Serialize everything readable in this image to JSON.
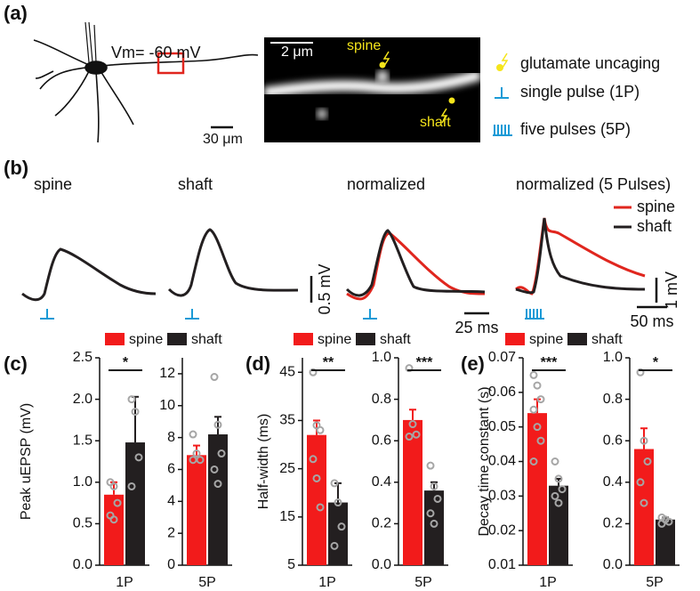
{
  "panel_a": {
    "label": "(a)",
    "vm": "Vm= -60 mV",
    "scale_left": "30 μm",
    "scale_image": "2 μm",
    "spine": "spine",
    "shaft": "shaft",
    "legend": [
      "glutamate uncaging",
      "single pulse (1P)",
      "five pulses (5P)"
    ]
  },
  "panel_b": {
    "label": "(b)",
    "titles": [
      "spine",
      "shaft",
      "normalized",
      "normalized (5 Pulses)"
    ],
    "legend": [
      {
        "name": "spine",
        "color": "#e0261e"
      },
      {
        "name": "shaft",
        "color": "#231f20"
      }
    ],
    "scale_bars": [
      "0.5 mV",
      "25 ms",
      "1 mV",
      "50 ms"
    ]
  },
  "panel_labels": [
    "(c)",
    "(d)",
    "(e)"
  ],
  "chart_data": [
    {
      "type": "bar",
      "ylabel": "Peak uEPSP (mV)",
      "categories": [
        "1P"
      ],
      "ylim": [
        0,
        2.5
      ],
      "yticks": [
        {
          "value": 0,
          "label": "0.0"
        },
        0.5,
        {
          "value": 1,
          "label": "1.0"
        },
        1.5,
        {
          "value": 2,
          "label": "2.0"
        },
        2.5
      ],
      "series": [
        {
          "name": "spine",
          "color": "#f21b1b",
          "values": [
            0.85
          ],
          "errors": [
            0.15
          ],
          "points": [
            1.0,
            0.95,
            0.75,
            0.6,
            0.55
          ]
        },
        {
          "name": "shaft",
          "color": "#231f20",
          "values": [
            1.48
          ],
          "errors": [
            0.55
          ],
          "points": [
            2.0,
            1.85,
            1.3,
            0.95
          ]
        }
      ],
      "annotation": "*"
    },
    {
      "type": "bar",
      "categories": [
        "5P"
      ],
      "ylim": [
        0,
        13
      ],
      "yticks": [
        0,
        2,
        4,
        6,
        8,
        10,
        12
      ],
      "series": [
        {
          "color": "#f21b1b",
          "values": [
            6.9
          ],
          "errors": [
            0.6
          ],
          "points": [
            8.2,
            7.0,
            6.6,
            6.6
          ]
        },
        {
          "color": "#231f20",
          "values": [
            8.2
          ],
          "errors": [
            1.1
          ],
          "points": [
            11.8,
            8.8,
            7.0,
            6.0,
            5.1
          ]
        }
      ]
    },
    {
      "type": "bar",
      "ylabel": "Half-width (ms)",
      "categories": [
        "1P"
      ],
      "ylim": [
        5,
        48
      ],
      "yticks": [
        5,
        15,
        25,
        35,
        45
      ],
      "series": [
        {
          "name": "spine",
          "color": "#f21b1b",
          "values": [
            32
          ],
          "errors": [
            3
          ],
          "points": [
            45,
            34,
            33,
            27,
            23,
            17
          ]
        },
        {
          "name": "shaft",
          "color": "#231f20",
          "values": [
            18
          ],
          "errors": [
            4
          ],
          "points": [
            22,
            18,
            13,
            9
          ]
        }
      ],
      "annotation": "**"
    },
    {
      "type": "bar",
      "categories": [
        "5P"
      ],
      "ylim": [
        0,
        1
      ],
      "yticks": [
        {
          "value": 0,
          "label": "0.0"
        },
        0.2,
        0.4,
        0.6,
        0.8,
        {
          "value": 1,
          "label": "1.0"
        }
      ],
      "series": [
        {
          "color": "#f21b1b",
          "values": [
            0.7
          ],
          "errors": [
            0.05
          ],
          "points": [
            0.95,
            0.68,
            0.63,
            0.62
          ]
        },
        {
          "color": "#231f20",
          "values": [
            0.36
          ],
          "errors": [
            0.04
          ],
          "points": [
            0.48,
            0.38,
            0.32,
            0.25,
            0.2
          ]
        }
      ],
      "annotation": "***"
    },
    {
      "type": "bar",
      "ylabel": "Decay time constant (s)",
      "categories": [
        "1P"
      ],
      "ylim": [
        0.01,
        0.07
      ],
      "yticks": [
        0.01,
        0.02,
        0.03,
        0.04,
        0.05,
        0.06,
        0.07
      ],
      "series": [
        {
          "name": "spine",
          "color": "#f21b1b",
          "values": [
            0.054
          ],
          "errors": [
            0.004
          ],
          "points": [
            0.065,
            0.062,
            0.058,
            0.055,
            0.05,
            0.046,
            0.04
          ]
        },
        {
          "name": "shaft",
          "color": "#231f20",
          "values": [
            0.033
          ],
          "errors": [
            0.002
          ],
          "points": [
            0.04,
            0.035,
            0.032,
            0.03,
            0.028
          ]
        }
      ],
      "annotation": "***"
    },
    {
      "type": "bar",
      "categories": [
        "5P"
      ],
      "ylim": [
        0,
        1
      ],
      "yticks": [
        {
          "value": 0,
          "label": "0.0"
        },
        0.2,
        0.4,
        0.6,
        0.8,
        {
          "value": 1,
          "label": "1.0"
        }
      ],
      "series": [
        {
          "color": "#f21b1b",
          "values": [
            0.56
          ],
          "errors": [
            0.1
          ],
          "points": [
            0.93,
            0.6,
            0.5,
            0.4,
            0.3
          ]
        },
        {
          "color": "#231f20",
          "values": [
            0.22
          ],
          "errors": [
            0.01
          ],
          "points": [
            0.23,
            0.22,
            0.21,
            0.2
          ]
        }
      ],
      "annotation": "*"
    }
  ]
}
